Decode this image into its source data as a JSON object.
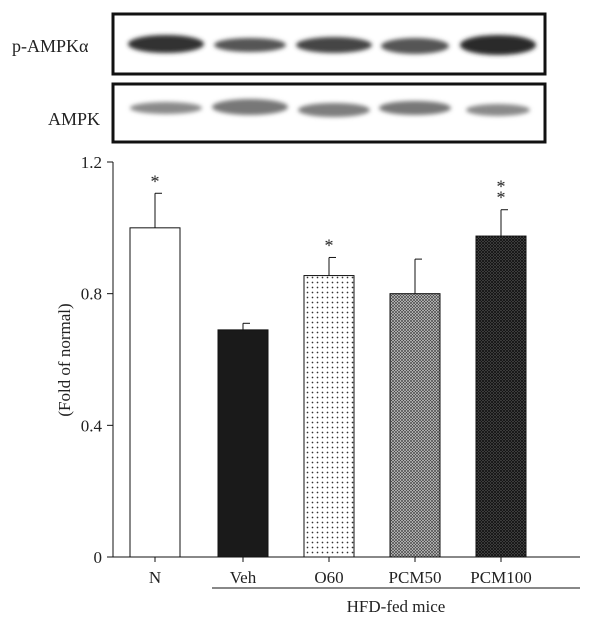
{
  "blots": {
    "top_label": "p-AMPKα",
    "bottom_label": "AMPK"
  },
  "chart_data": {
    "type": "bar",
    "categories": [
      "N",
      "Veh",
      "O60",
      "PCM50",
      "PCM100"
    ],
    "values": [
      1.0,
      0.69,
      0.855,
      0.8,
      0.975
    ],
    "error_upper": [
      0.105,
      0.02,
      0.055,
      0.105,
      0.08
    ],
    "annotations": [
      "*",
      "",
      "*",
      "",
      "**"
    ],
    "fills": [
      "white",
      "solid-black",
      "sparse-dots",
      "dense-crosshatch",
      "dense-dark-crosshatch"
    ],
    "ylabel": "(Fold of normal)",
    "xlabel": "",
    "ylim": [
      0,
      1.2
    ],
    "yticks": [
      0,
      0.4,
      0.8,
      1.2
    ],
    "ytick_labels": [
      "0",
      "0.4",
      "0.8",
      "1.2"
    ],
    "group_label": "HFD-fed mice",
    "group_members": [
      "Veh",
      "O60",
      "PCM50",
      "PCM100"
    ],
    "grid": false
  }
}
